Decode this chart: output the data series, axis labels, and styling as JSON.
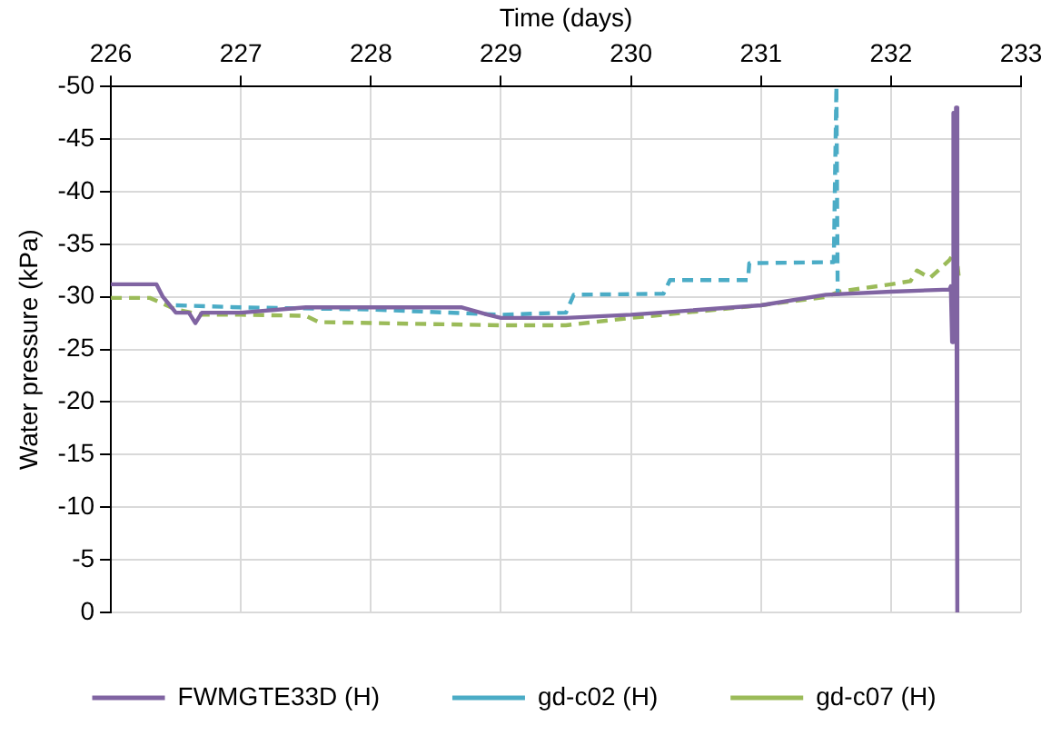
{
  "chart_data": {
    "type": "line",
    "xlabel": "Time (days)",
    "ylabel": "Water pressure (kPa)",
    "xlim": [
      226,
      233
    ],
    "xticks": [
      226,
      227,
      228,
      229,
      230,
      231,
      232,
      233
    ],
    "ylim": [
      0,
      -50
    ],
    "yticks": [
      0,
      -5,
      -10,
      -15,
      -20,
      -25,
      -30,
      -35,
      -40,
      -45,
      -50
    ],
    "grid": true,
    "legend": "bottom",
    "marker": "none",
    "series": [
      {
        "name": "FWMGTE33D (H)",
        "color": "#8064a2",
        "line_style": "solid",
        "x": [
          226,
          226.35,
          226.4,
          226.5,
          226.6,
          226.65,
          226.7,
          227,
          227.5,
          228.7,
          228.9,
          229,
          229.5,
          230,
          231,
          231.5,
          232,
          232.45,
          232.46,
          232.47,
          232.48,
          232.49,
          232.5,
          232.51
        ],
        "values": [
          -31.2,
          -31.2,
          -30,
          -28.5,
          -28.5,
          -27.5,
          -28.5,
          -28.5,
          -29,
          -29,
          -28.3,
          -28,
          -28,
          -28.3,
          -29.2,
          -30.2,
          -30.5,
          -30.7,
          -31,
          -25.7,
          -47.5,
          -30,
          -48,
          0
        ]
      },
      {
        "name": "gd-c02 (H)",
        "color": "#4bacc6",
        "line_style": "dashed",
        "x": [
          226.5,
          227,
          228,
          229,
          229.5,
          229.56,
          230.25,
          230.3,
          230.9,
          230.91,
          231.56,
          231.58,
          231.59
        ],
        "values": [
          -29.2,
          -29,
          -28.8,
          -28.3,
          -28.5,
          -30.2,
          -30.3,
          -31.6,
          -31.6,
          -33.2,
          -33.3,
          -50,
          -30.1
        ]
      },
      {
        "name": "gd-c07 (H)",
        "color": "#9bbb59",
        "line_style": "dashed",
        "x": [
          226,
          226.3,
          226.5,
          226.7,
          227,
          227.5,
          227.6,
          229,
          229.5,
          230,
          231,
          231.5,
          231.6,
          232,
          232.15,
          232.2,
          232.3,
          232.45,
          232.5,
          232.52
        ],
        "values": [
          -29.9,
          -29.9,
          -28.8,
          -28.3,
          -28.3,
          -28.2,
          -27.6,
          -27.3,
          -27.3,
          -28,
          -29.2,
          -30,
          -30.5,
          -31.2,
          -31.5,
          -32.5,
          -31.8,
          -33.5,
          -34.5,
          -32
        ]
      }
    ]
  }
}
